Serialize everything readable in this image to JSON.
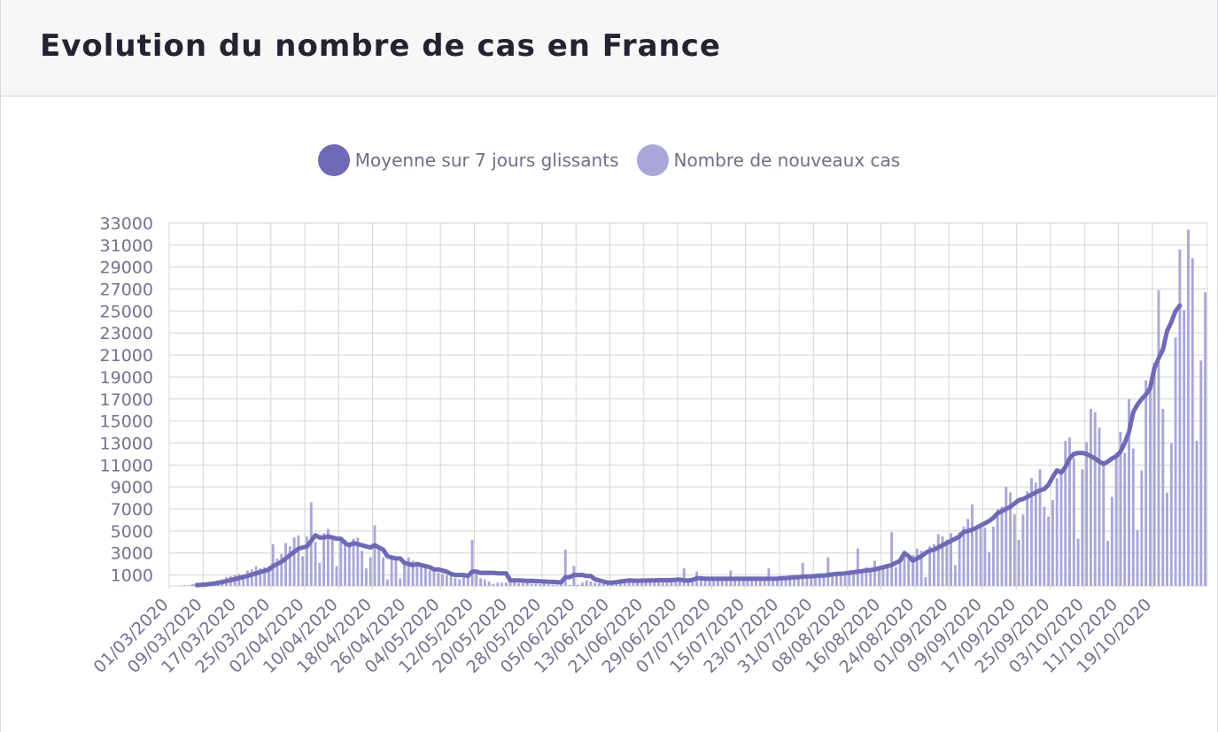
{
  "header": {
    "title": "Evolution du nombre de cas en France"
  },
  "colors": {
    "line": "#6e6ab6",
    "bar": "#a9a6d8",
    "grid": "#d4d4d4",
    "text": "#737390"
  },
  "legend": {
    "items": [
      {
        "label": "Moyenne sur 7 jours glissants",
        "color": "#6e6ab6"
      },
      {
        "label": "Nombre de nouveaux cas",
        "color": "#a9a6d8"
      }
    ]
  },
  "chart_data": {
    "type": "bar",
    "title": "Evolution du nombre de cas en France",
    "start_date": "01/03/2020",
    "ylim": [
      0,
      33000
    ],
    "y_ticks": [
      1000,
      3000,
      5000,
      7000,
      9000,
      11000,
      13000,
      15000,
      17000,
      19000,
      21000,
      23000,
      25000,
      27000,
      29000,
      31000,
      33000
    ],
    "x_tick_labels": [
      "01/03/2020",
      "09/03/2020",
      "17/03/2020",
      "25/03/2020",
      "02/04/2020",
      "10/04/2020",
      "18/04/2020",
      "26/04/2020",
      "04/05/2020",
      "12/05/2020",
      "20/05/2020",
      "28/05/2020",
      "05/06/2020",
      "13/06/2020",
      "21/06/2020",
      "29/06/2020",
      "07/07/2020",
      "15/07/2020",
      "23/07/2020",
      "31/07/2020",
      "08/08/2020",
      "16/08/2020",
      "24/08/2020",
      "01/09/2020",
      "09/09/2020",
      "17/09/2020",
      "25/09/2020",
      "03/10/2020",
      "11/10/2020",
      "19/10/2020"
    ],
    "series": [
      {
        "name": "Nombre de nouveaux cas",
        "type": "bar",
        "values": [
          0,
          0,
          30,
          60,
          70,
          180,
          100,
          200,
          250,
          300,
          400,
          500,
          600,
          800,
          900,
          1000,
          1100,
          1000,
          1400,
          1500,
          1800,
          1600,
          1700,
          1800,
          3800,
          2500,
          2900,
          3900,
          3600,
          4400,
          4600,
          2700,
          4500,
          7600,
          4000,
          2100,
          4800,
          5200,
          4500,
          1800,
          4300,
          4200,
          3900,
          4300,
          4400,
          3200,
          1600,
          2600,
          5500,
          3300,
          2600,
          600,
          2600,
          2300,
          700,
          2200,
          2600,
          2300,
          2000,
          1900,
          1800,
          1400,
          1300,
          1200,
          1100,
          1000,
          900,
          700,
          600,
          900,
          800,
          4200,
          1300,
          700,
          600,
          400,
          200,
          300,
          300,
          300,
          300,
          300,
          250,
          250,
          300,
          200,
          200,
          150,
          200,
          150,
          100,
          100,
          150,
          3300,
          100,
          1800,
          100,
          300,
          500,
          400,
          300,
          250,
          200,
          200,
          200,
          300,
          350,
          400,
          350,
          300,
          300,
          350,
          400,
          450,
          500,
          450,
          400,
          600,
          500,
          500,
          550,
          1600,
          500,
          600,
          1300,
          700,
          700,
          700,
          650,
          700,
          700,
          700,
          1400,
          700,
          700,
          650,
          700,
          700,
          700,
          700,
          700,
          1600,
          700,
          800,
          900,
          800,
          800,
          900,
          900,
          2100,
          900,
          1000,
          1000,
          1000,
          1100,
          2600,
          1100,
          1200,
          1300,
          1300,
          1200,
          1300,
          3400,
          1400,
          1700,
          1400,
          2300,
          1500,
          1500,
          1600,
          4900,
          1700,
          2500,
          2700,
          2900,
          2800,
          3400,
          3200,
          800,
          3600,
          3800,
          4700,
          4500,
          4200,
          4800,
          1900,
          4900,
          5400,
          6100,
          7400,
          5400,
          5500,
          5300,
          3100,
          5400,
          7000,
          7200,
          9000,
          8500,
          6500,
          4200,
          6500,
          8600,
          9800,
          9400,
          10600,
          7200,
          6300,
          7800,
          9800,
          10600,
          13200,
          13500,
          11600,
          4300,
          10600,
          13100,
          16100,
          15800,
          14400,
          11100,
          4100,
          8100,
          12100,
          14000,
          12100,
          17000,
          12500,
          5100,
          10500,
          18700,
          18100,
          20300,
          26900,
          16100,
          8500,
          13000,
          22600,
          30600,
          25100,
          32400,
          29800,
          13200,
          20500,
          26700
        ]
      },
      {
        "name": "Moyenne sur 7 jours glissants",
        "type": "line",
        "values": [
          null,
          null,
          null,
          null,
          null,
          null,
          80,
          100,
          130,
          170,
          220,
          280,
          350,
          440,
          530,
          620,
          720,
          820,
          920,
          1030,
          1150,
          1260,
          1370,
          1480,
          1800,
          2000,
          2200,
          2500,
          2800,
          3100,
          3400,
          3500,
          3600,
          4100,
          4600,
          4400,
          4400,
          4500,
          4400,
          4300,
          4300,
          3900,
          3700,
          3900,
          3800,
          3700,
          3600,
          3500,
          3700,
          3500,
          3300,
          2700,
          2600,
          2500,
          2500,
          2100,
          2000,
          1900,
          2000,
          1900,
          1800,
          1700,
          1500,
          1500,
          1400,
          1300,
          1100,
          1000,
          1000,
          1000,
          900,
          1300,
          1300,
          1200,
          1200,
          1200,
          1200,
          1150,
          1150,
          1150,
          500,
          500,
          500,
          480,
          470,
          460,
          440,
          420,
          400,
          380,
          370,
          350,
          330,
          800,
          800,
          1000,
          1000,
          1000,
          900,
          900,
          600,
          500,
          400,
          300,
          300,
          350,
          400,
          450,
          500,
          480,
          470,
          480,
          490,
          500,
          510,
          520,
          520,
          530,
          520,
          560,
          580,
          500,
          500,
          550,
          700,
          700,
          650,
          650,
          650,
          650,
          650,
          650,
          650,
          650,
          650,
          650,
          650,
          650,
          650,
          650,
          650,
          650,
          650,
          670,
          700,
          720,
          750,
          780,
          800,
          850,
          870,
          880,
          900,
          950,
          950,
          1000,
          1050,
          1100,
          1100,
          1150,
          1200,
          1250,
          1300,
          1350,
          1400,
          1450,
          1500,
          1600,
          1700,
          1800,
          1900,
          2100,
          2300,
          3000,
          2700,
          2300,
          2500,
          2700,
          3000,
          3200,
          3300,
          3500,
          3700,
          3900,
          4100,
          4300,
          4500,
          4900,
          5000,
          5100,
          5300,
          5500,
          5700,
          5900,
          6200,
          6600,
          6800,
          7000,
          7200,
          7500,
          7800,
          7900,
          8100,
          8300,
          8500,
          8700,
          8800,
          9200,
          9900,
          10500,
          10300,
          10800,
          11600,
          12000,
          12100,
          12100,
          12000,
          11800,
          11600,
          11300,
          11100,
          11300,
          11600,
          11800,
          12200,
          13000,
          14000,
          15800,
          16500,
          17000,
          17400,
          18000,
          19800,
          20700,
          21500,
          23200,
          24000,
          25000,
          25500
        ]
      }
    ]
  }
}
